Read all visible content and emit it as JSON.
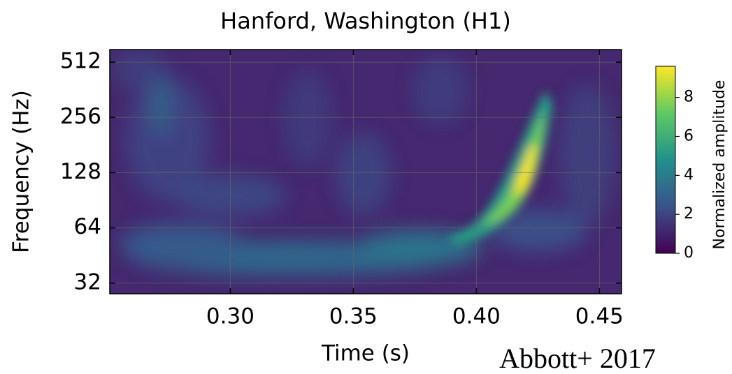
{
  "chart_data": {
    "type": "spectrogram",
    "title": "Hanford, Washington (H1)",
    "x_label": "Time (s)",
    "y_label": "Frequency (Hz)",
    "xlim": [
      0.251,
      0.459
    ],
    "xticks": [
      {
        "value": 0.3,
        "label": "0.30"
      },
      {
        "value": 0.35,
        "label": "0.35"
      },
      {
        "value": 0.4,
        "label": "0.40"
      },
      {
        "value": 0.45,
        "label": "0.45"
      }
    ],
    "ylim": [
      28,
      600
    ],
    "yticks": [
      32,
      64,
      128,
      256,
      512
    ],
    "y_scale": "log2",
    "grid": true,
    "colorbar": {
      "label": "Normalized amplitude",
      "lim": [
        0,
        9.6
      ],
      "ticks": [
        0,
        2,
        4,
        6,
        8
      ],
      "colormap": [
        "#440154",
        "#3b528b",
        "#21918c",
        "#5ec962",
        "#fde725"
      ]
    },
    "annotation": "Abbott+ 2017"
  }
}
